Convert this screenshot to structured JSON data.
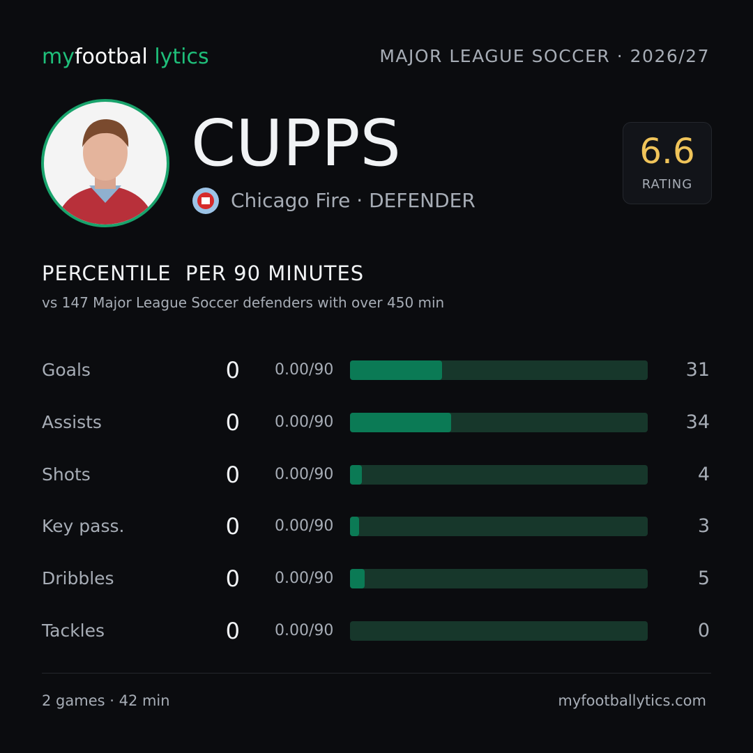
{
  "header": {
    "logo": [
      "my",
      "footbal",
      "lytics"
    ],
    "league": "MAJOR LEAGUE SOCCER · 2026/27"
  },
  "player": {
    "name": "CUPPS",
    "team": "Chicago Fire · DEFENDER",
    "rating": "6.6",
    "rating_label": "RATING"
  },
  "section": {
    "title": "PERCENTILE  PER 90 MINUTES",
    "subtitle": "vs 147 Major League Soccer defenders with over 450 min"
  },
  "stats": [
    {
      "label": "Goals",
      "total": 0,
      "per90": "0.00/90",
      "percentile": 31
    },
    {
      "label": "Assists",
      "total": 0,
      "per90": "0.00/90",
      "percentile": 34
    },
    {
      "label": "Shots",
      "total": 0,
      "per90": "0.00/90",
      "percentile": 4
    },
    {
      "label": "Key pass.",
      "total": 0,
      "per90": "0.00/90",
      "percentile": 3
    },
    {
      "label": "Dribbles",
      "total": 0,
      "per90": "0.00/90",
      "percentile": 5
    },
    {
      "label": "Tackles",
      "total": 0,
      "per90": "0.00/90",
      "percentile": 0
    }
  ],
  "footer": {
    "summary": "2 games · 42 min",
    "site": "myfootballytics.com"
  }
}
